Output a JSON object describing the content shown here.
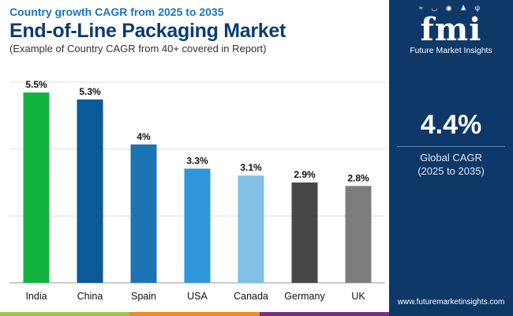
{
  "header": {
    "supertitle": "Country growth CAGR from 2025 to 2035",
    "title": "End-of-Line Packaging Market",
    "subtitle": "(Example of Country CAGR from 40+ covered in Report)"
  },
  "chart_data": {
    "type": "bar",
    "title": "End-of-Line Packaging Market",
    "categories": [
      "India",
      "China",
      "Spain",
      "USA",
      "Canada",
      "Germany",
      "UK"
    ],
    "values": [
      5.5,
      5.3,
      4.0,
      3.3,
      3.1,
      2.9,
      2.8
    ],
    "data_labels": [
      "5.5%",
      "5.3%",
      "4%",
      "3.3%",
      "3.1%",
      "2.9%",
      "2.8%"
    ],
    "colors": [
      "#13b33f",
      "#0b5a9a",
      "#1d74b4",
      "#2f96da",
      "#82bfe6",
      "#474747",
      "#7d7d7d"
    ],
    "unit": "%",
    "xlabel": "",
    "ylabel": "",
    "ylim": [
      0,
      5.8
    ],
    "grid": true,
    "legend": "none"
  },
  "sidebar": {
    "logo_text": "fmi",
    "logo_icons": [
      "wave-icon",
      "bowl-icon",
      "globe-icon",
      "person-icon",
      "fork-icon"
    ],
    "company": "Future Market Insights",
    "kpi_value": "4.4%",
    "kpi_label_line1": "Global CAGR",
    "kpi_label_line2": "(2025 to 2035)",
    "website": "www.futuremarketinsights.com"
  },
  "footer_colors": [
    "#9bc54a",
    "#f08a24",
    "#7a2c86"
  ]
}
